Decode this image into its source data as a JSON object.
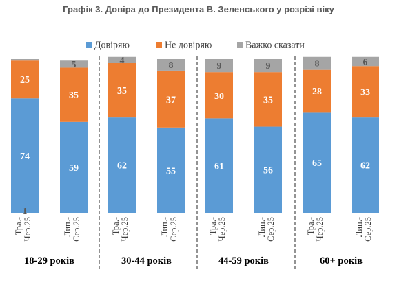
{
  "title": "Графік 3. Довіра до Президента В. Зеленського у розрізі віку",
  "colors": {
    "trust": "#5B9BD5",
    "distrust": "#ED7D31",
    "hard_to_say": "#A5A5A5",
    "separator": "#595959",
    "text_on_light": "#595959",
    "text_on_dark": "#ffffff"
  },
  "chart_data": {
    "type": "bar",
    "stacked": true,
    "ylim": [
      0,
      100
    ],
    "grid": false,
    "legend_position": "top",
    "groups": [
      "18-29 років",
      "30-44 років",
      "44-59 років",
      "60+ років"
    ],
    "categories": [
      "Тра.-Чер.25",
      "Лип.-Сер.25",
      "Тра.-Чер.25",
      "Лип.-Сер.25",
      "Тра.-Чер.25",
      "Лип.-Сер.25",
      "Тра.-Чер.25",
      "Лип.-Сер.25"
    ],
    "series": [
      {
        "name": "Довіряю",
        "values": [
          74,
          59,
          62,
          55,
          61,
          56,
          65,
          62
        ]
      },
      {
        "name": "Не довіряю",
        "values": [
          25,
          35,
          35,
          37,
          30,
          35,
          28,
          33
        ]
      },
      {
        "name": "Важко сказати",
        "values": [
          1,
          5,
          4,
          8,
          9,
          9,
          8,
          6
        ]
      }
    ]
  }
}
